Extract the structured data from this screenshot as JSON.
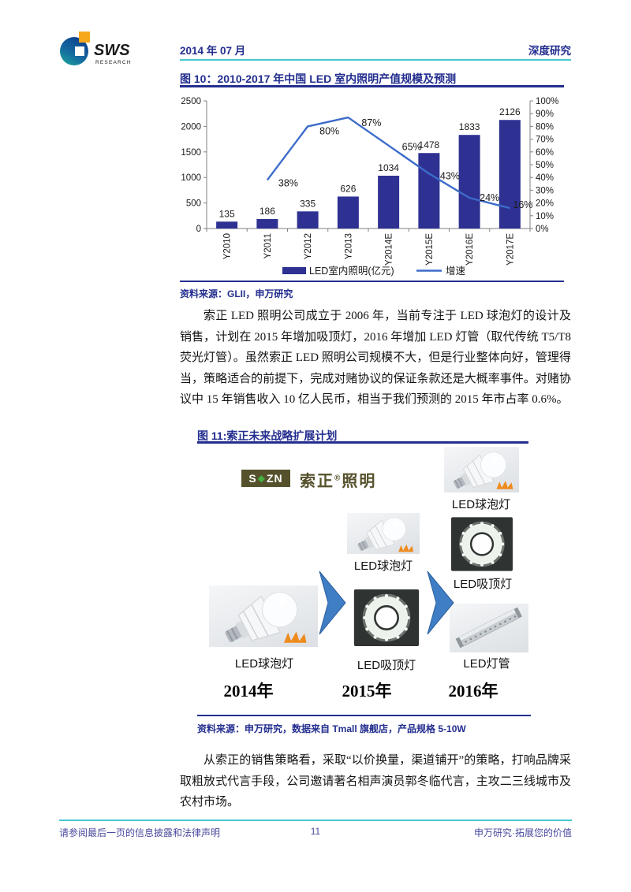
{
  "header": {
    "logo": {
      "brand": "SWS",
      "sub": "RESEARCH"
    },
    "date": "2014 年 07 月",
    "report_type": "深度研究"
  },
  "figure10": {
    "title": "图 10：2010-2017 年中国 LED 室内照明产值规模及预测",
    "source": "资料来源：GLII，申万研究"
  },
  "chart_data": {
    "type": "bar+line",
    "categories": [
      "Y2010",
      "Y2011",
      "Y2012",
      "Y2013",
      "Y2014E",
      "Y2015E",
      "Y2016E",
      "Y2017E"
    ],
    "series": [
      {
        "name": "LED室内照明(亿元)",
        "type": "bar",
        "axis": "left",
        "values": [
          135,
          186,
          335,
          626,
          1034,
          1478,
          1833,
          2126
        ],
        "color": "#2e3192"
      },
      {
        "name": "增速",
        "type": "line",
        "axis": "right",
        "values": [
          null,
          38,
          80,
          87,
          65,
          43,
          24,
          16
        ],
        "labels": [
          "",
          "38%",
          "80%",
          "87%",
          "65%",
          "43%",
          "24%",
          "16%"
        ],
        "color": "#3c6bc9"
      }
    ],
    "left_axis": {
      "min": 0,
      "max": 2500,
      "step": 500
    },
    "right_axis": {
      "min": 0,
      "max": 100,
      "step": 10,
      "suffix": "%"
    },
    "legend_position": "bottom",
    "grid": false
  },
  "paragraph1": "索正 LED 照明公司成立于 2006 年，当前专注于 LED 球泡灯的设计及销售，计划在 2015 年增加吸顶灯，2016 年增加 LED 灯管（取代传统 T5/T8 荧光灯管）。虽然索正 LED 照明公司规模不大，但是行业整体向好，管理得当，策略适合的前提下，完成对赌协议的保证条款还是大概率事件。对赌协议中 15 年销售收入 10 亿人民币，相当于我们预测的 2015 年市占率 0.6%。",
  "figure11": {
    "title": "图 11:索正未来战略扩展计划",
    "brand": {
      "s": "S",
      "diamond": "◆",
      "zn": "ZN",
      "name_pre": "索正",
      "reg": "®",
      "name_post": "照明"
    },
    "labels": {
      "bulb": "LED球泡灯",
      "ceiling": "LED吸顶灯",
      "tube": "LED灯管"
    },
    "years": [
      "2014年",
      "2015年",
      "2016年"
    ],
    "source": "资料来源：申万研究，数据来自 Tmall 旗舰店，产品规格 5-10W"
  },
  "paragraph2": "从索正的销售策略看，采取“以价换量，渠道铺开”的策略，打响品牌采取粗放式代言手段，公司邀请著名相声演员郭冬临代言，主攻二三线城市及农村市场。",
  "footer": {
    "left": "请参阅最后一页的信息披露和法律声明",
    "page": "11",
    "right": "申万研究·拓展您的价值"
  }
}
